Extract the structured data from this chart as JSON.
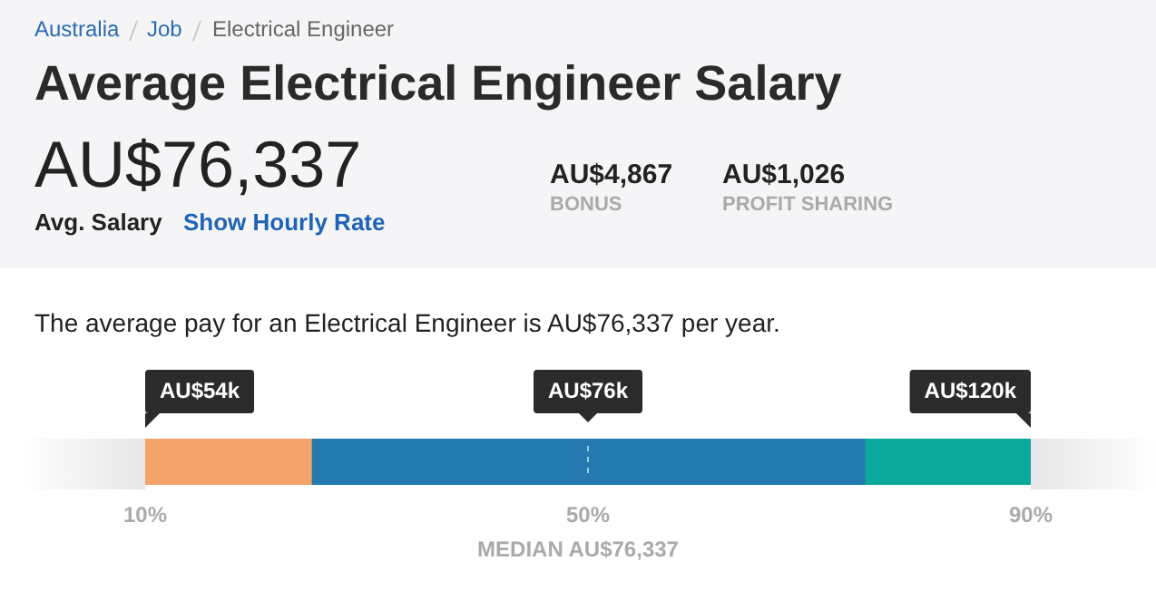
{
  "chart_data": {
    "type": "bar",
    "orientation": "horizontal",
    "title": "Average Electrical Engineer Salary",
    "categories": [
      null
    ],
    "series": [
      {
        "color": "#f4a36a",
        "values": [
          15
        ],
        "base": [
          10
        ]
      },
      {
        "color": "#2479ae",
        "values": [
          50
        ],
        "base": [
          25
        ]
      },
      {
        "color": "#0ba89c",
        "values": [
          15
        ],
        "base": [
          75
        ]
      }
    ],
    "xlim": [
      10,
      90
    ],
    "xticks": [
      {
        "value": 10,
        "label": "10%"
      },
      {
        "value": 50,
        "label": "50%"
      },
      {
        "value": 90,
        "label": "90%"
      }
    ],
    "ref_lines": [
      {
        "axis": "x",
        "value": 50,
        "color": "#8fd3e0",
        "line_style": "dashed"
      }
    ],
    "grid": false,
    "legend": false,
    "annotations": [
      "Australia",
      "Job",
      "Electrical Engineer",
      "AU$76,337",
      "Avg. Salary",
      "Show Hourly Rate",
      "AU$4,867",
      "BONUS",
      "AU$1,026",
      "PROFIT SHARING",
      "The average pay for an Electrical Engineer is AU$76,337 per year.",
      "MEDIAN AU$76,337",
      "AU$54k",
      "AU$76k",
      "AU$120k"
    ]
  }
}
